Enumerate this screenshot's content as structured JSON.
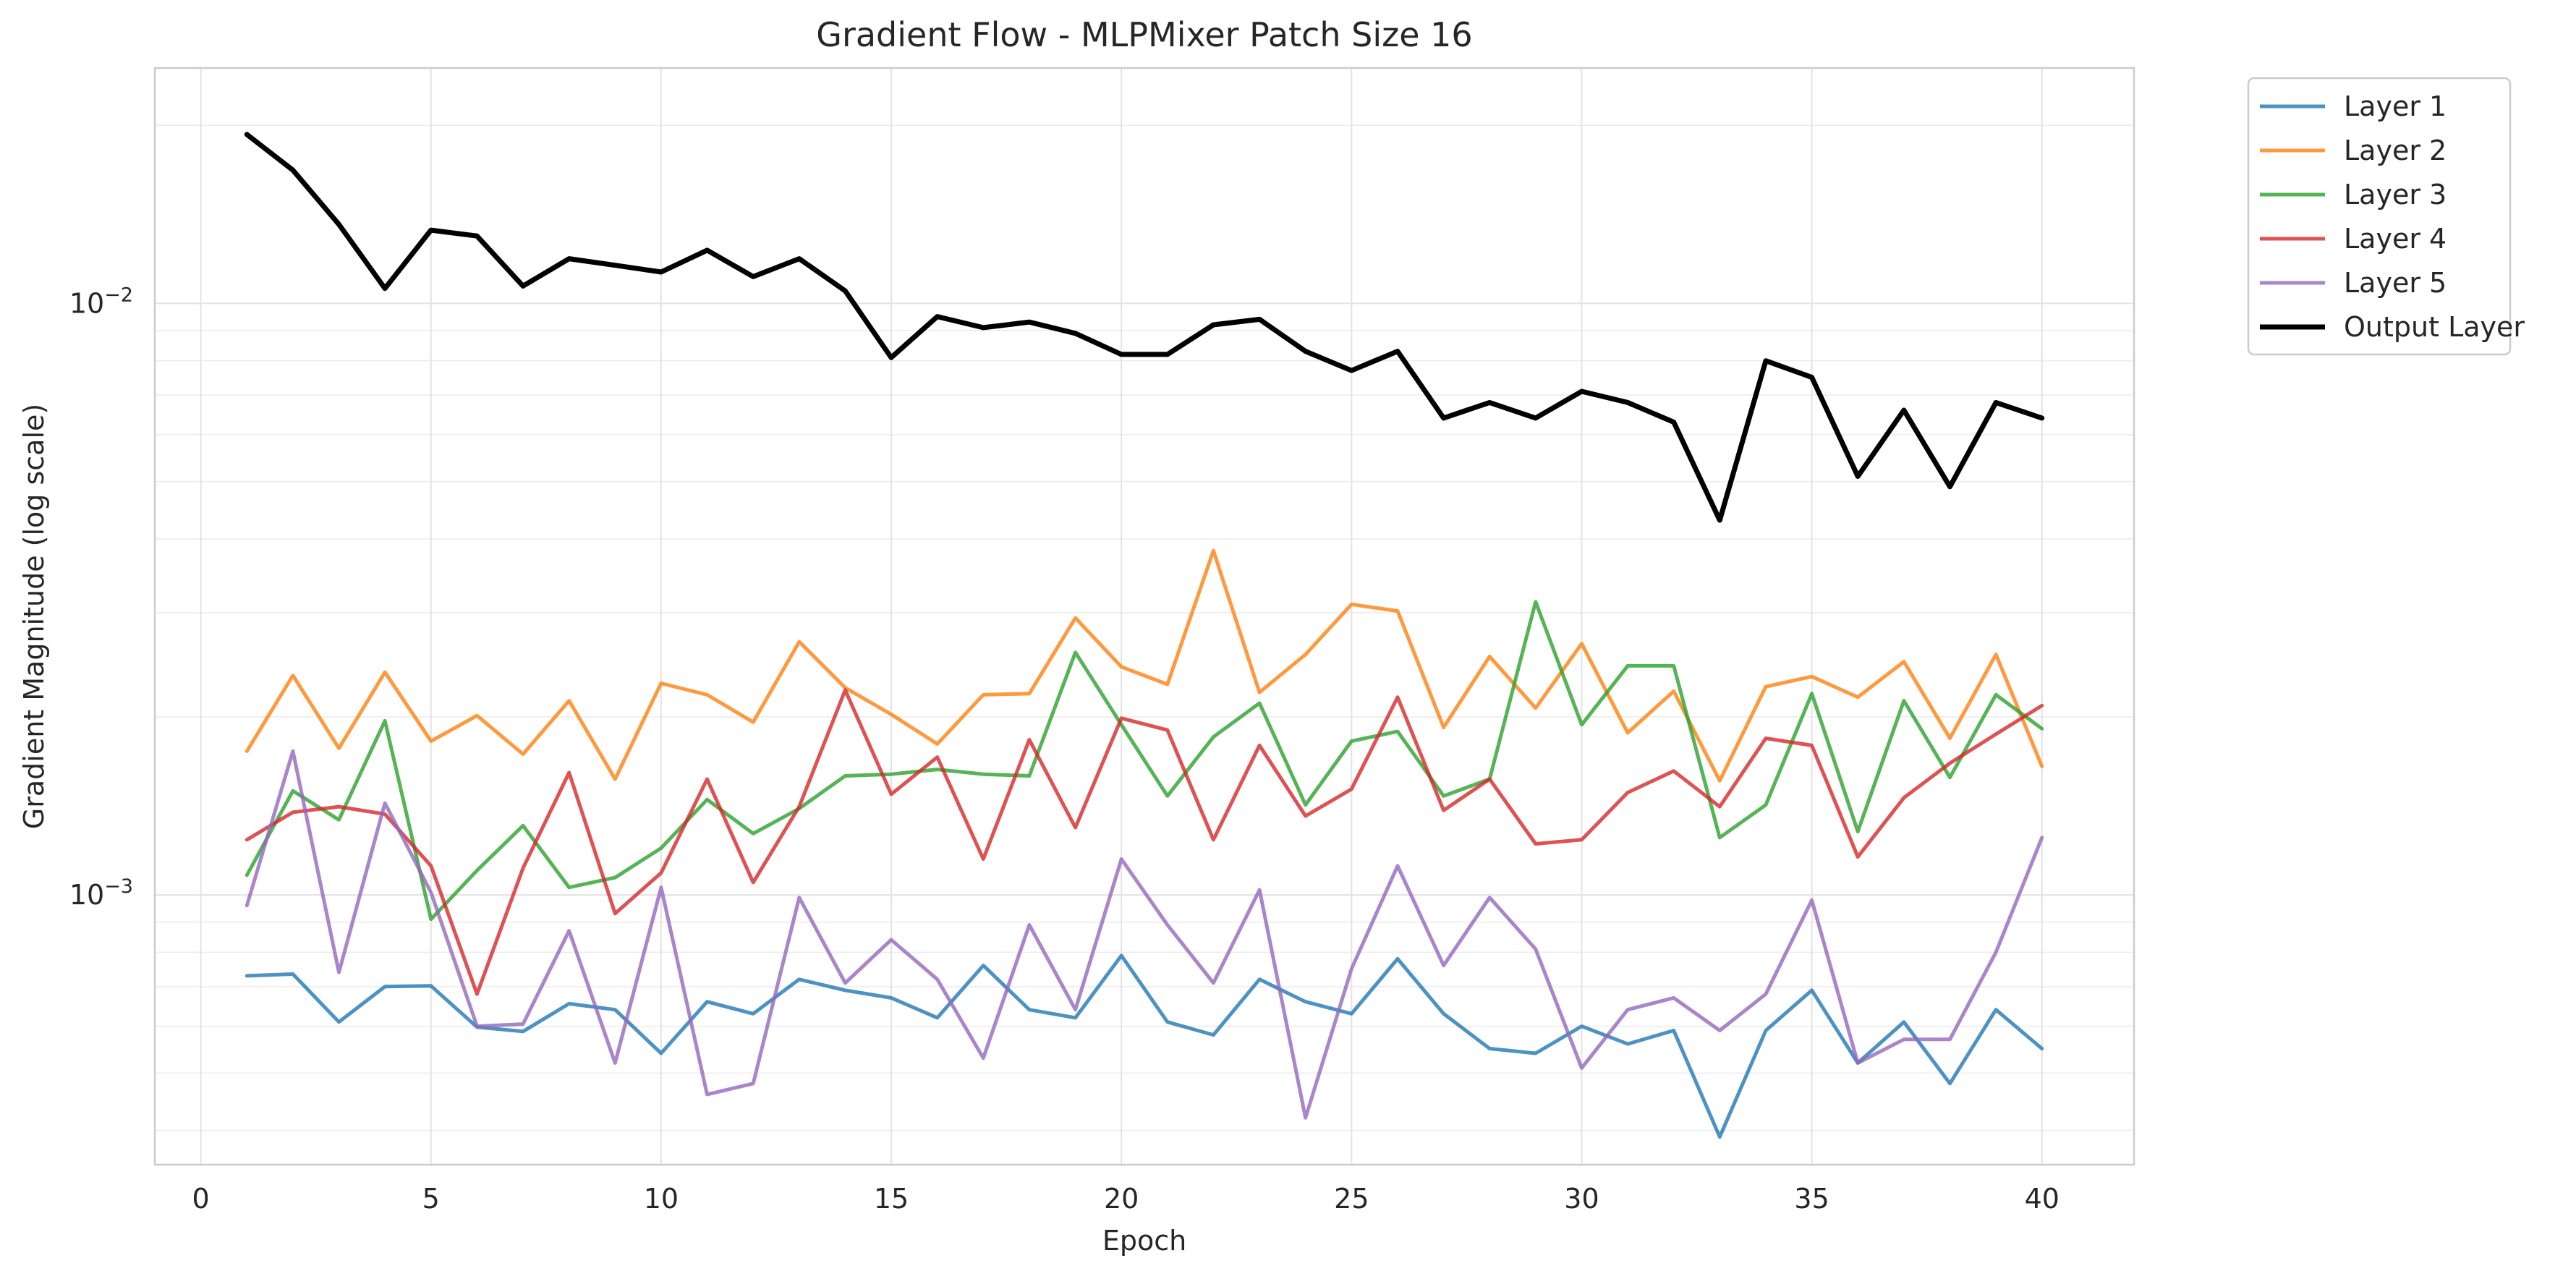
{
  "chart_data": {
    "type": "line",
    "title": "Gradient Flow - MLPMixer Patch Size 16",
    "xlabel": "Epoch",
    "ylabel": "Gradient Magnitude (log scale)",
    "yscale": "log",
    "xlim": [
      -1,
      42
    ],
    "ylim": [
      0.00035,
      0.025
    ],
    "xticks": [
      0,
      5,
      10,
      15,
      20,
      25,
      30,
      35,
      40
    ],
    "xtick_labels": [
      "0",
      "5",
      "10",
      "15",
      "20",
      "25",
      "30",
      "35",
      "40"
    ],
    "yticks": [
      0.001,
      0.01
    ],
    "ytick_labels": [
      "10^-3",
      "10^-2"
    ],
    "grid": true,
    "legend_position": "outside-top-right",
    "x": [
      1,
      2,
      3,
      4,
      5,
      6,
      7,
      8,
      9,
      10,
      11,
      12,
      13,
      14,
      15,
      16,
      17,
      18,
      19,
      20,
      21,
      22,
      23,
      24,
      25,
      26,
      27,
      28,
      29,
      30,
      31,
      32,
      33,
      34,
      35,
      36,
      37,
      38,
      39,
      40
    ],
    "series": [
      {
        "name": "Layer 1",
        "color": "#1f77b4",
        "values": [
          0.00073,
          0.000735,
          0.00061,
          0.0007,
          0.000702,
          0.000598,
          0.000588,
          0.000655,
          0.00064,
          0.00054,
          0.00066,
          0.00063,
          0.00072,
          0.00069,
          0.00067,
          0.00062,
          0.00076,
          0.00064,
          0.00062,
          0.00079,
          0.00061,
          0.00058,
          0.00072,
          0.00066,
          0.00063,
          0.00078,
          0.00063,
          0.00055,
          0.00054,
          0.0006,
          0.00056,
          0.00059,
          0.00039,
          0.00059,
          0.00069,
          0.00052,
          0.00061,
          0.00048,
          0.00064,
          0.00055
        ]
      },
      {
        "name": "Layer 2",
        "color": "#ff7f0e",
        "values": [
          0.00175,
          0.00235,
          0.00177,
          0.00238,
          0.00182,
          0.00201,
          0.00173,
          0.00213,
          0.00157,
          0.00228,
          0.00218,
          0.00196,
          0.00268,
          0.00224,
          0.00202,
          0.0018,
          0.00218,
          0.00219,
          0.00294,
          0.00243,
          0.00227,
          0.00382,
          0.0022,
          0.00255,
          0.0031,
          0.00302,
          0.00192,
          0.00253,
          0.00207,
          0.00266,
          0.00188,
          0.00221,
          0.00156,
          0.00225,
          0.00234,
          0.00216,
          0.00248,
          0.00184,
          0.00255,
          0.00165
        ]
      },
      {
        "name": "Layer 3",
        "color": "#2ca02c",
        "values": [
          0.00108,
          0.0015,
          0.00134,
          0.00197,
          0.00091,
          0.0011,
          0.00131,
          0.00103,
          0.00107,
          0.0012,
          0.00145,
          0.00127,
          0.0014,
          0.00159,
          0.0016,
          0.00163,
          0.0016,
          0.00159,
          0.00257,
          0.00194,
          0.00147,
          0.00185,
          0.00211,
          0.00142,
          0.00182,
          0.00189,
          0.00147,
          0.00157,
          0.00313,
          0.00194,
          0.00244,
          0.00244,
          0.00125,
          0.00142,
          0.00219,
          0.00128,
          0.00213,
          0.00158,
          0.00218,
          0.00191
        ]
      },
      {
        "name": "Layer 4",
        "color": "#d62728",
        "values": [
          0.00124,
          0.00138,
          0.00141,
          0.00137,
          0.00112,
          0.00068,
          0.00111,
          0.00161,
          0.00093,
          0.00109,
          0.00157,
          0.00105,
          0.00141,
          0.00222,
          0.00148,
          0.00171,
          0.00115,
          0.00183,
          0.0013,
          0.00199,
          0.0019,
          0.00124,
          0.00179,
          0.00136,
          0.00151,
          0.00216,
          0.00139,
          0.00157,
          0.00122,
          0.00124,
          0.00149,
          0.00162,
          0.00141,
          0.00184,
          0.00179,
          0.00116,
          0.00146,
          0.00167,
          0.00187,
          0.00209
        ]
      },
      {
        "name": "Layer 5",
        "color": "#9467bd",
        "values": [
          0.00096,
          0.00175,
          0.00074,
          0.00143,
          0.00101,
          0.0006,
          0.000605,
          0.00087,
          0.00052,
          0.00103,
          0.00046,
          0.00048,
          0.00099,
          0.00071,
          0.00084,
          0.00072,
          0.00053,
          0.00089,
          0.00064,
          0.00115,
          0.00089,
          0.00071,
          0.00102,
          0.00042,
          0.00075,
          0.00112,
          0.00076,
          0.00099,
          0.00081,
          0.00051,
          0.00064,
          0.00067,
          0.00059,
          0.00068,
          0.00098,
          0.00052,
          0.00057,
          0.00057,
          0.0008,
          0.00125
        ]
      },
      {
        "name": "Output Layer",
        "color": "#000000",
        "values": [
          0.0193,
          0.0168,
          0.0136,
          0.0106,
          0.0133,
          0.013,
          0.0107,
          0.0119,
          0.0116,
          0.0113,
          0.0123,
          0.0111,
          0.0119,
          0.0105,
          0.0081,
          0.0095,
          0.0091,
          0.0093,
          0.0089,
          0.0082,
          0.0082,
          0.0092,
          0.0094,
          0.0083,
          0.0077,
          0.0083,
          0.0064,
          0.0068,
          0.0064,
          0.0071,
          0.0068,
          0.0063,
          0.0043,
          0.008,
          0.0075,
          0.0051,
          0.0066,
          0.0049,
          0.0068,
          0.0064
        ]
      }
    ]
  }
}
